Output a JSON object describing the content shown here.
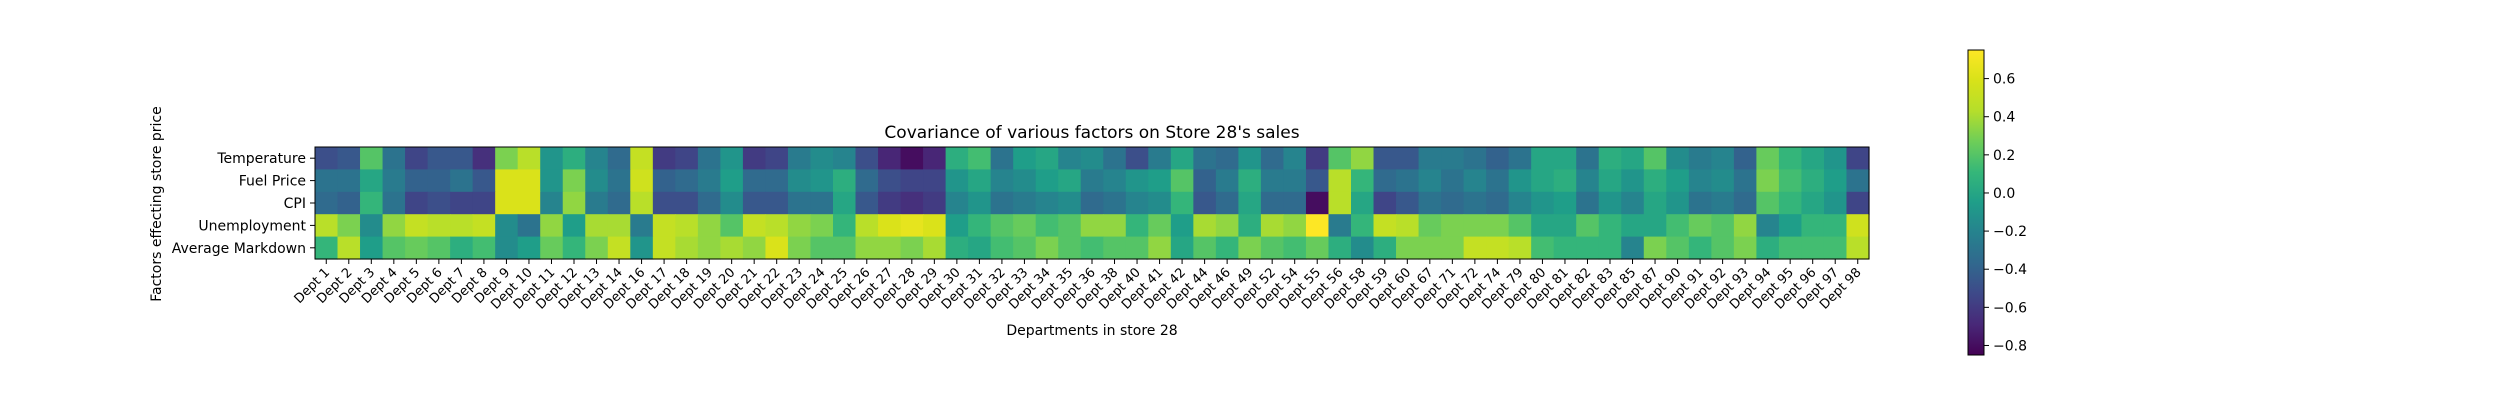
{
  "chart_data": {
    "type": "heatmap",
    "title": "Covariance of various factors on Store 28's sales",
    "xlabel": "Departments in store 28",
    "ylabel": "Factors effecting store price",
    "rows": [
      "Temperature",
      "Fuel Price",
      "CPI",
      "Unemployment",
      "Average Markdown"
    ],
    "columns": [
      "Dept 1",
      "Dept 2",
      "Dept 3",
      "Dept 4",
      "Dept 5",
      "Dept 6",
      "Dept 7",
      "Dept 8",
      "Dept 9",
      "Dept 10",
      "Dept 11",
      "Dept 12",
      "Dept 13",
      "Dept 14",
      "Dept 16",
      "Dept 17",
      "Dept 18",
      "Dept 19",
      "Dept 20",
      "Dept 21",
      "Dept 22",
      "Dept 23",
      "Dept 24",
      "Dept 25",
      "Dept 26",
      "Dept 27",
      "Dept 28",
      "Dept 29",
      "Dept 30",
      "Dept 31",
      "Dept 32",
      "Dept 33",
      "Dept 34",
      "Dept 35",
      "Dept 36",
      "Dept 38",
      "Dept 40",
      "Dept 41",
      "Dept 42",
      "Dept 44",
      "Dept 46",
      "Dept 49",
      "Dept 52",
      "Dept 54",
      "Dept 55",
      "Dept 56",
      "Dept 58",
      "Dept 59",
      "Dept 60",
      "Dept 67",
      "Dept 71",
      "Dept 72",
      "Dept 74",
      "Dept 79",
      "Dept 80",
      "Dept 81",
      "Dept 82",
      "Dept 83",
      "Dept 85",
      "Dept 87",
      "Dept 90",
      "Dept 91",
      "Dept 92",
      "Dept 93",
      "Dept 94",
      "Dept 95",
      "Dept 96",
      "Dept 97",
      "Dept 98"
    ],
    "values": [
      [
        -0.5,
        -0.45,
        0.2,
        -0.3,
        -0.55,
        -0.45,
        -0.45,
        -0.65,
        0.3,
        0.45,
        -0.1,
        0.05,
        -0.2,
        -0.35,
        0.5,
        -0.6,
        -0.55,
        -0.3,
        -0.1,
        -0.6,
        -0.55,
        -0.25,
        -0.15,
        -0.2,
        -0.5,
        -0.7,
        -0.8,
        -0.7,
        0.05,
        0.15,
        -0.3,
        -0.05,
        0.0,
        -0.2,
        -0.15,
        -0.3,
        -0.5,
        -0.25,
        0.0,
        -0.3,
        -0.35,
        -0.1,
        -0.35,
        -0.2,
        -0.6,
        0.2,
        0.35,
        -0.45,
        -0.45,
        -0.25,
        -0.25,
        -0.3,
        -0.4,
        -0.3,
        0.0,
        0.0,
        -0.3,
        0.05,
        0.0,
        0.2,
        -0.15,
        -0.25,
        -0.2,
        -0.4,
        0.25,
        0.1,
        0.0,
        -0.1,
        -0.55
      ],
      [
        -0.3,
        -0.3,
        0.0,
        -0.25,
        -0.4,
        -0.4,
        -0.3,
        -0.45,
        0.6,
        0.6,
        -0.1,
        0.3,
        -0.15,
        -0.3,
        0.55,
        -0.4,
        -0.35,
        -0.25,
        -0.05,
        -0.35,
        -0.35,
        -0.15,
        -0.1,
        0.05,
        -0.35,
        -0.5,
        -0.55,
        -0.55,
        -0.1,
        0.0,
        -0.2,
        -0.15,
        -0.05,
        0.0,
        -0.25,
        -0.2,
        -0.1,
        -0.05,
        0.2,
        -0.4,
        -0.25,
        0.05,
        -0.25,
        -0.25,
        -0.45,
        0.45,
        0.1,
        -0.35,
        -0.3,
        -0.2,
        -0.3,
        -0.2,
        -0.3,
        -0.1,
        0.0,
        0.05,
        -0.2,
        0.0,
        -0.1,
        0.05,
        -0.05,
        -0.2,
        -0.15,
        -0.3,
        0.3,
        0.15,
        0.05,
        -0.05,
        -0.3
      ],
      [
        -0.35,
        -0.4,
        0.1,
        -0.3,
        -0.55,
        -0.5,
        -0.55,
        -0.55,
        0.6,
        0.6,
        -0.2,
        0.35,
        -0.25,
        -0.35,
        0.45,
        -0.5,
        -0.5,
        -0.35,
        -0.15,
        -0.45,
        -0.45,
        -0.3,
        -0.3,
        0.0,
        -0.45,
        -0.6,
        -0.65,
        -0.6,
        -0.2,
        -0.1,
        -0.3,
        -0.25,
        -0.2,
        -0.15,
        -0.35,
        -0.3,
        -0.2,
        -0.15,
        0.1,
        -0.45,
        -0.35,
        0.0,
        -0.35,
        -0.35,
        -0.8,
        0.45,
        0.0,
        -0.55,
        -0.45,
        -0.3,
        -0.35,
        -0.3,
        -0.35,
        -0.2,
        -0.1,
        -0.05,
        -0.3,
        -0.1,
        -0.2,
        0.0,
        -0.1,
        -0.3,
        -0.25,
        -0.35,
        0.2,
        0.1,
        0.0,
        -0.1,
        -0.55
      ],
      [
        0.45,
        0.3,
        -0.15,
        0.35,
        0.5,
        0.45,
        0.45,
        0.5,
        -0.15,
        -0.3,
        0.35,
        -0.05,
        0.4,
        0.4,
        -0.25,
        0.5,
        0.45,
        0.35,
        0.2,
        0.5,
        0.45,
        0.35,
        0.3,
        0.1,
        0.45,
        0.6,
        0.65,
        0.6,
        -0.05,
        0.1,
        0.2,
        0.25,
        0.15,
        0.2,
        0.35,
        0.35,
        0.1,
        0.25,
        -0.05,
        0.4,
        0.35,
        0.05,
        0.4,
        0.35,
        0.75,
        -0.25,
        0.1,
        0.5,
        0.45,
        0.25,
        0.3,
        0.3,
        0.3,
        0.2,
        0.0,
        0.0,
        0.2,
        0.1,
        0.0,
        0.0,
        0.15,
        0.25,
        0.2,
        0.35,
        -0.2,
        -0.05,
        0.1,
        0.1,
        0.55
      ],
      [
        0.1,
        0.45,
        -0.05,
        0.2,
        0.25,
        0.2,
        0.05,
        0.15,
        -0.15,
        -0.05,
        0.25,
        0.1,
        0.3,
        0.5,
        -0.1,
        0.5,
        0.4,
        0.35,
        0.4,
        0.35,
        0.6,
        0.3,
        0.2,
        0.2,
        0.35,
        0.35,
        0.3,
        0.4,
        0.05,
        0.0,
        0.15,
        0.2,
        0.3,
        0.2,
        0.15,
        0.2,
        0.2,
        0.35,
        0.0,
        0.2,
        0.1,
        0.3,
        0.2,
        0.15,
        0.25,
        0.05,
        -0.15,
        0.05,
        0.3,
        0.3,
        0.3,
        0.5,
        0.5,
        0.45,
        0.15,
        0.1,
        0.1,
        0.1,
        -0.2,
        0.3,
        0.2,
        0.1,
        0.2,
        0.3,
        0.05,
        0.15,
        0.15,
        0.15,
        0.45
      ]
    ],
    "colorbar": {
      "range": [
        -0.85,
        0.75
      ],
      "ticks": [
        -0.8,
        -0.6,
        -0.4,
        -0.2,
        0.0,
        0.2,
        0.4,
        0.6
      ],
      "tick_labels": [
        "−0.8",
        "−0.6",
        "−0.4",
        "−0.2",
        "0.0",
        "0.2",
        "0.4",
        "0.6"
      ],
      "colormap": "viridis"
    }
  }
}
